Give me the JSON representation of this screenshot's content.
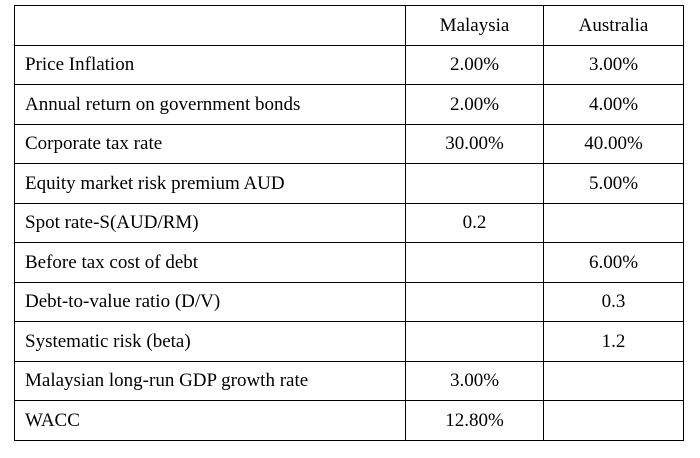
{
  "table": {
    "columns": [
      "",
      "Malaysia",
      "Australia"
    ],
    "rows": [
      {
        "label": "Price Inflation",
        "malaysia": "2.00%",
        "australia": "3.00%"
      },
      {
        "label": "Annual return on government bonds",
        "malaysia": "2.00%",
        "australia": "4.00%"
      },
      {
        "label": "Corporate tax rate",
        "malaysia": "30.00%",
        "australia": "40.00%"
      },
      {
        "label": "Equity market risk premium AUD",
        "malaysia": "",
        "australia": "5.00%"
      },
      {
        "label": "Spot rate-S(AUD/RM)",
        "malaysia": "0.2",
        "australia": ""
      },
      {
        "label": "Before tax cost of debt",
        "malaysia": "",
        "australia": "6.00%"
      },
      {
        "label": "Debt-to-value ratio (D/V)",
        "malaysia": "",
        "australia": "0.3"
      },
      {
        "label": "Systematic risk (beta)",
        "malaysia": "",
        "australia": "1.2"
      },
      {
        "label": "Malaysian long-run GDP growth rate",
        "malaysia": "3.00%",
        "australia": ""
      },
      {
        "label": "WACC",
        "malaysia": "12.80%",
        "australia": ""
      }
    ]
  }
}
